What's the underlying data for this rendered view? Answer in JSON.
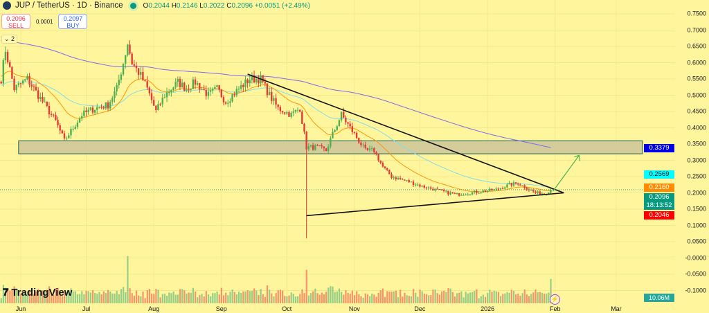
{
  "header": {
    "symbol": "JUP / TetherUS · 1D · Binance",
    "open_label": "O",
    "open": "0.2044",
    "high_label": "H",
    "high": "0.2146",
    "low_label": "L",
    "low": "0.2022",
    "close_label": "C",
    "close": "0.2096",
    "change": "+0.0051 (+2.49%)"
  },
  "trade": {
    "sell_price": "0.2096",
    "sell_label": "SELL",
    "spread": "0.0001",
    "buy_price": "0.2097",
    "buy_label": "BUY"
  },
  "indicators_toggle": "2",
  "brand": "TradingView",
  "colors": {
    "background": "#fff59d",
    "up": "#81c784",
    "down": "#f4845f",
    "ema_fast": "#ff9800",
    "ema_mid": "#80deea",
    "ema_slow": "#7b68ee",
    "zone_fill": "#c9c29a",
    "arrow": "#4caf50"
  },
  "chart_data": {
    "type": "candlestick",
    "title": "JUP / TetherUS · 1D · Binance",
    "y_ticks": [
      "0.7500",
      "0.7000",
      "0.6500",
      "0.6000",
      "0.5500",
      "0.5000",
      "0.4500",
      "0.4000",
      "0.3500",
      "0.3000",
      "0.2500",
      "0.2000",
      "0.1500",
      "0.1000",
      "0.0500",
      "-0.0000",
      "-0.0500",
      "-0.1000"
    ],
    "ylim": [
      -0.1,
      0.75
    ],
    "x_ticks": [
      {
        "label": "Jun",
        "day": 0
      },
      {
        "label": "Jul",
        "day": 30
      },
      {
        "label": "Aug",
        "day": 61
      },
      {
        "label": "Sep",
        "day": 92
      },
      {
        "label": "Oct",
        "day": 122
      },
      {
        "label": "Nov",
        "day": 153
      },
      {
        "label": "Dec",
        "day": 183
      },
      {
        "label": "2026",
        "day": 214
      },
      {
        "label": "Feb",
        "day": 245
      },
      {
        "label": "Mar",
        "day": 273
      }
    ],
    "price_anchors": [
      [
        -9,
        0.55
      ],
      [
        -7,
        0.64
      ],
      [
        -5,
        0.58
      ],
      [
        -3,
        0.52
      ],
      [
        3,
        0.55
      ],
      [
        8,
        0.5
      ],
      [
        12,
        0.46
      ],
      [
        16,
        0.42
      ],
      [
        20,
        0.36
      ],
      [
        24,
        0.4
      ],
      [
        28,
        0.44
      ],
      [
        34,
        0.46
      ],
      [
        40,
        0.47
      ],
      [
        44,
        0.52
      ],
      [
        47,
        0.6
      ],
      [
        49,
        0.66
      ],
      [
        51,
        0.6
      ],
      [
        55,
        0.56
      ],
      [
        58,
        0.52
      ],
      [
        62,
        0.45
      ],
      [
        66,
        0.5
      ],
      [
        72,
        0.54
      ],
      [
        76,
        0.52
      ],
      [
        80,
        0.54
      ],
      [
        86,
        0.5
      ],
      [
        90,
        0.52
      ],
      [
        94,
        0.48
      ],
      [
        100,
        0.52
      ],
      [
        105,
        0.55
      ],
      [
        110,
        0.55
      ],
      [
        114,
        0.5
      ],
      [
        118,
        0.46
      ],
      [
        124,
        0.44
      ],
      [
        128,
        0.46
      ],
      [
        131,
        0.34
      ],
      [
        136,
        0.34
      ],
      [
        140,
        0.33
      ],
      [
        143,
        0.38
      ],
      [
        147,
        0.44
      ],
      [
        151,
        0.4
      ],
      [
        155,
        0.36
      ],
      [
        158,
        0.33
      ],
      [
        162,
        0.33
      ],
      [
        166,
        0.28
      ],
      [
        170,
        0.25
      ],
      [
        175,
        0.24
      ],
      [
        180,
        0.23
      ],
      [
        184,
        0.22
      ],
      [
        190,
        0.21
      ],
      [
        196,
        0.2
      ],
      [
        200,
        0.195
      ],
      [
        206,
        0.2
      ],
      [
        212,
        0.205
      ],
      [
        218,
        0.21
      ],
      [
        224,
        0.225
      ],
      [
        228,
        0.23
      ],
      [
        232,
        0.215
      ],
      [
        236,
        0.2
      ],
      [
        240,
        0.198
      ],
      [
        243,
        0.2096
      ]
    ],
    "crash_wick": {
      "day": 131,
      "low": 0.06
    },
    "zone": {
      "from_day": -1,
      "to_day": 285,
      "low": 0.32,
      "high": 0.36
    },
    "trendline_upper": [
      [
        104,
        0.565
      ],
      [
        249,
        0.2
      ]
    ],
    "trendline_lower": [
      [
        131,
        0.13
      ],
      [
        249,
        0.2
      ]
    ],
    "arrow": [
      [
        244,
        0.205
      ],
      [
        256,
        0.315
      ]
    ],
    "price_tags": [
      {
        "value": "0.3379",
        "price": 0.3379,
        "color": "#0000e0",
        "name": "ema-slow-tag"
      },
      {
        "value": "0.2569",
        "price": 0.2569,
        "color": "#00ffff",
        "text": "#131722",
        "name": "ema-mid-tag"
      },
      {
        "value": "0.2160",
        "price": 0.216,
        "color": "#ff8c00",
        "name": "ema-fast-tag"
      },
      {
        "value": "0.2096",
        "price": 0.2096,
        "color": "#089981",
        "name": "last-price-tag",
        "countdown": "18:13:52"
      },
      {
        "value": "0.2046",
        "price": 0.2046,
        "color": "#ff0000",
        "name": "low-tag"
      }
    ],
    "volume_label": "10.06M"
  }
}
